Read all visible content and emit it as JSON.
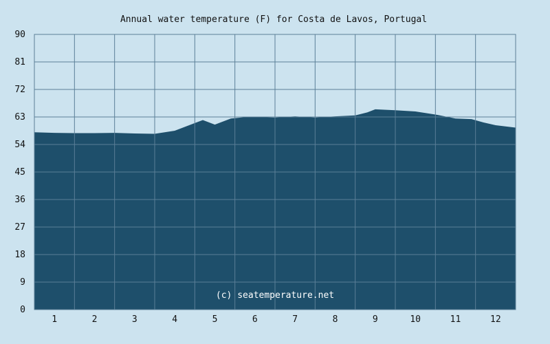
{
  "chart_data": {
    "type": "area",
    "title": "Annual water temperature (F) for Costa de Lavos, Portugal",
    "xlabel": "",
    "ylabel": "",
    "categories": [
      "1",
      "2",
      "3",
      "4",
      "5",
      "6",
      "7",
      "8",
      "9",
      "10",
      "11",
      "12"
    ],
    "xlim": [
      0,
      12
    ],
    "ylim": [
      0,
      90
    ],
    "yticks": [
      0,
      9,
      18,
      27,
      36,
      45,
      54,
      63,
      72,
      81,
      90
    ],
    "grid": true,
    "legend": "none",
    "x": [
      0,
      0.5,
      1,
      1.5,
      2,
      2.5,
      3,
      3.5,
      4,
      4.2,
      4.5,
      4.9,
      5.3,
      5.5,
      6,
      6.5,
      7,
      7.5,
      8,
      8.3,
      8.5,
      9,
      9.5,
      10,
      10.5,
      10.9,
      11.2,
      11.5,
      12
    ],
    "y": [
      58,
      57.8,
      57.7,
      57.7,
      57.8,
      57.6,
      57.5,
      58.5,
      61,
      62,
      60.5,
      62.5,
      63,
      63,
      62.8,
      63.2,
      62.8,
      63.2,
      63.5,
      64.5,
      65.5,
      65.2,
      64.8,
      63.8,
      62.5,
      62.3,
      61.2,
      60.3,
      59.5
    ],
    "series": [
      {
        "values": [
          57.8,
          57.7,
          57.6,
          58.5,
          62,
          63,
          63.2,
          63.5,
          65.3,
          64,
          62.8,
          59.6
        ]
      }
    ],
    "colors": {
      "background": "#cce3ef",
      "fill": "#1e4f6b",
      "grid": "#5b7f97",
      "text": "#111111",
      "watermark_text": "#ffffff"
    }
  },
  "watermark": "(c) seatemperature.net"
}
